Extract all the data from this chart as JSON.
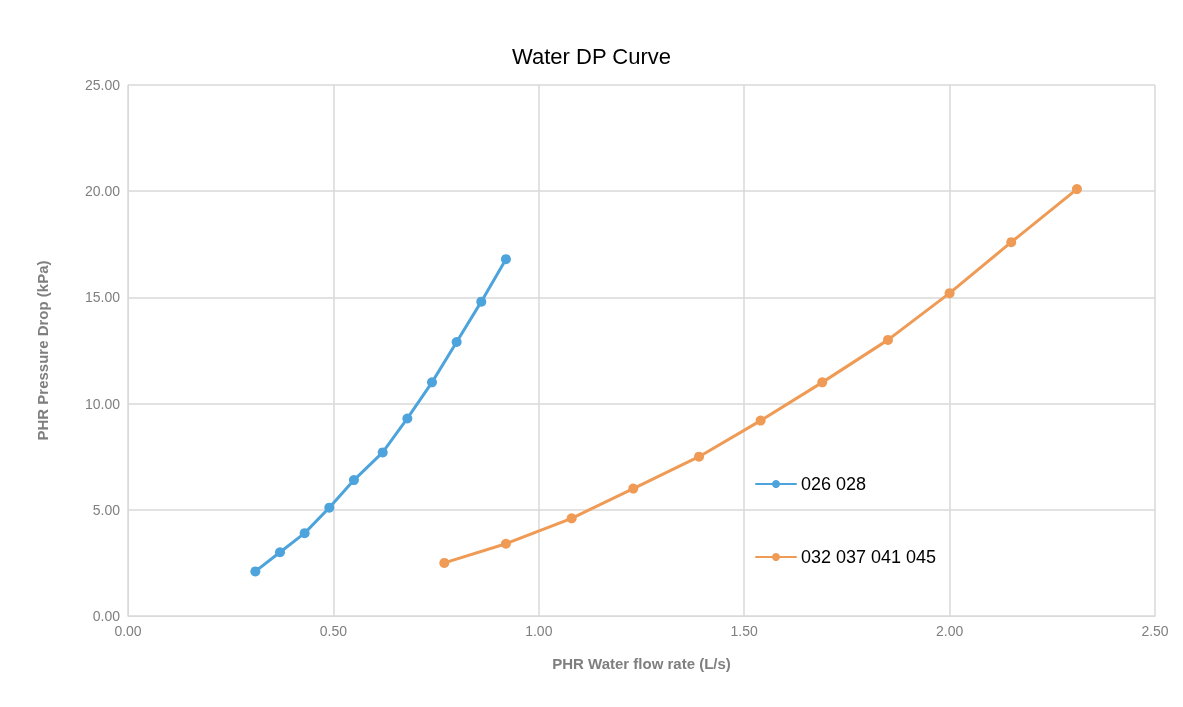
{
  "chart_data": {
    "type": "line",
    "title": "Water DP Curve",
    "xlabel": "PHR Water flow rate (L/s)",
    "ylabel": "PHR Pressure Drop (kPa)",
    "series": [
      {
        "name": "026 028",
        "color": "#4da3dc",
        "x": [
          0.31,
          0.37,
          0.43,
          0.49,
          0.55,
          0.62,
          0.68,
          0.74,
          0.8,
          0.86,
          0.92
        ],
        "values": [
          2.1,
          3.0,
          3.9,
          5.1,
          6.4,
          7.7,
          9.3,
          11.0,
          12.9,
          14.8,
          16.8
        ]
      },
      {
        "name": "032 037 041 045",
        "color": "#ef9a55",
        "x": [
          0.77,
          0.92,
          1.08,
          1.23,
          1.39,
          1.54,
          1.69,
          1.85,
          2.0,
          2.15,
          2.31
        ],
        "values": [
          2.5,
          3.4,
          4.6,
          6.0,
          7.5,
          9.2,
          11.0,
          13.0,
          15.2,
          17.6,
          20.1
        ]
      }
    ],
    "xlim": [
      0,
      2.5
    ],
    "xticks": [
      {
        "value": 0,
        "label": "0.00"
      },
      {
        "value": 0.5,
        "label": "0.50"
      },
      {
        "value": 1,
        "label": "1.00"
      },
      {
        "value": 1.5,
        "label": "1.50"
      },
      {
        "value": 2,
        "label": "2.00"
      },
      {
        "value": 2.5,
        "label": "2.50"
      }
    ],
    "ylim": [
      0,
      25
    ],
    "yticks": [
      {
        "value": 0,
        "label": "0.00"
      },
      {
        "value": 5,
        "label": "5.00"
      },
      {
        "value": 10,
        "label": "10.00"
      },
      {
        "value": 15,
        "label": "15.00"
      },
      {
        "value": 20,
        "label": "20.00"
      },
      {
        "value": 25,
        "label": "25.00"
      }
    ],
    "grid": true,
    "legend": "right",
    "marker": "circle",
    "line_style": "solid"
  }
}
